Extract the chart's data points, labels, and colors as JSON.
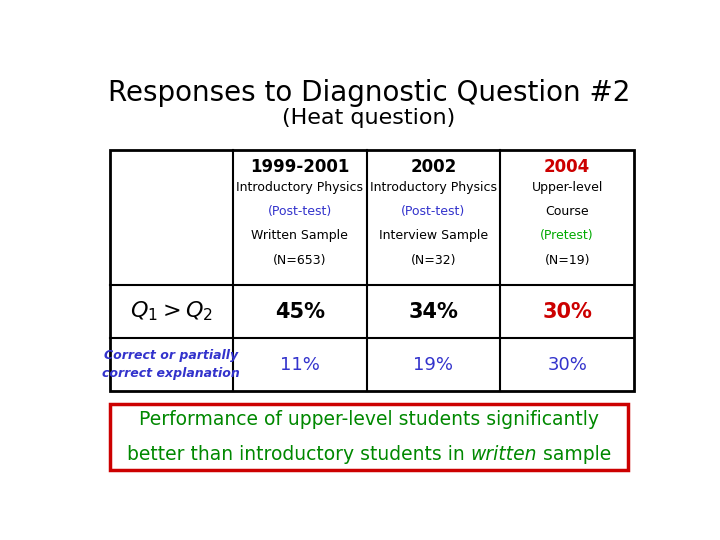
{
  "title_line1": "Responses to Diagnostic Question #2",
  "title_line2": "(Heat question)",
  "title_fontsize": 20,
  "subtitle_fontsize": 16,
  "bg_color": "#ffffff",
  "table": {
    "col_headers": [
      "1999-2001",
      "2002",
      "2004"
    ],
    "col_subheaders": [
      [
        "Introductory Physics",
        "(Post-test)",
        "Written Sample",
        "(N=653)"
      ],
      [
        "Introductory Physics",
        "(Post-test)",
        "Interview Sample",
        "(N=32)"
      ],
      [
        "Upper-level",
        "Course",
        "(Pretest)",
        "(N=19)"
      ]
    ],
    "col_header_colors": [
      "#000000",
      "#000000",
      "#cc0000"
    ],
    "col_subheader_colors": [
      [
        "#000000",
        "#3333cc",
        "#000000",
        "#000000"
      ],
      [
        "#000000",
        "#3333cc",
        "#000000",
        "#000000"
      ],
      [
        "#000000",
        "#000000",
        "#00aa00",
        "#000000"
      ]
    ],
    "row1_label_color": "#000000",
    "row1_values": [
      "45%",
      "34%",
      "30%"
    ],
    "row1_value_colors": [
      "#000000",
      "#000000",
      "#cc0000"
    ],
    "row2_label": "Correct or partially\ncorrect explanation",
    "row2_label_color": "#3333cc",
    "row2_values": [
      "11%",
      "19%",
      "30%"
    ],
    "row2_value_colors": [
      "#3333cc",
      "#3333cc",
      "#3333cc"
    ],
    "border_color": "#000000"
  },
  "footnote_line1": "Performance of upper-level students significantly",
  "footnote_line2_pre": "better than introductory students in ",
  "footnote_line2_italic": "written",
  "footnote_line2_post": " sample",
  "footnote_color": "#008800",
  "footnote_border_color": "#cc0000",
  "footnote_fontsize": 13.5
}
